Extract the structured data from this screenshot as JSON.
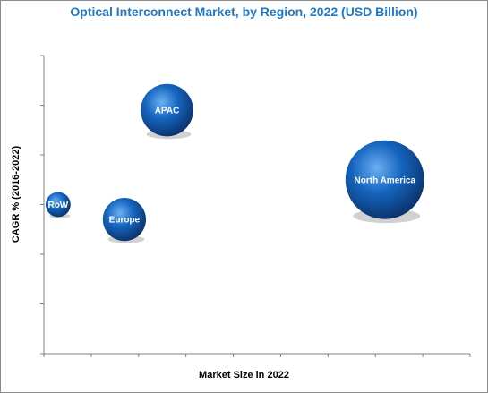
{
  "chart_data": {
    "type": "bubble",
    "title": "Optical Interconnect Market, by Region, 2022 (USD Billion)",
    "xlabel": "Market Size in 2022",
    "ylabel": "CAGR % (2016-2022)",
    "xlim": [
      0,
      9
    ],
    "ylim": [
      0,
      6
    ],
    "grid": false,
    "colors": {
      "bubble": "#1565c0",
      "bubble_highlight": "#6ab0f0",
      "bubble_dark": "#0a2f63",
      "title": "#1f77c8"
    },
    "series": [
      {
        "name": "North America",
        "x": 7.2,
        "y": 3.5,
        "size": 9.0
      },
      {
        "name": "APAC",
        "x": 2.6,
        "y": 4.9,
        "size": 4.0
      },
      {
        "name": "Europe",
        "x": 1.7,
        "y": 2.7,
        "size": 2.7
      },
      {
        "name": "RoW",
        "x": 0.3,
        "y": 3.0,
        "size": 0.9
      }
    ]
  }
}
